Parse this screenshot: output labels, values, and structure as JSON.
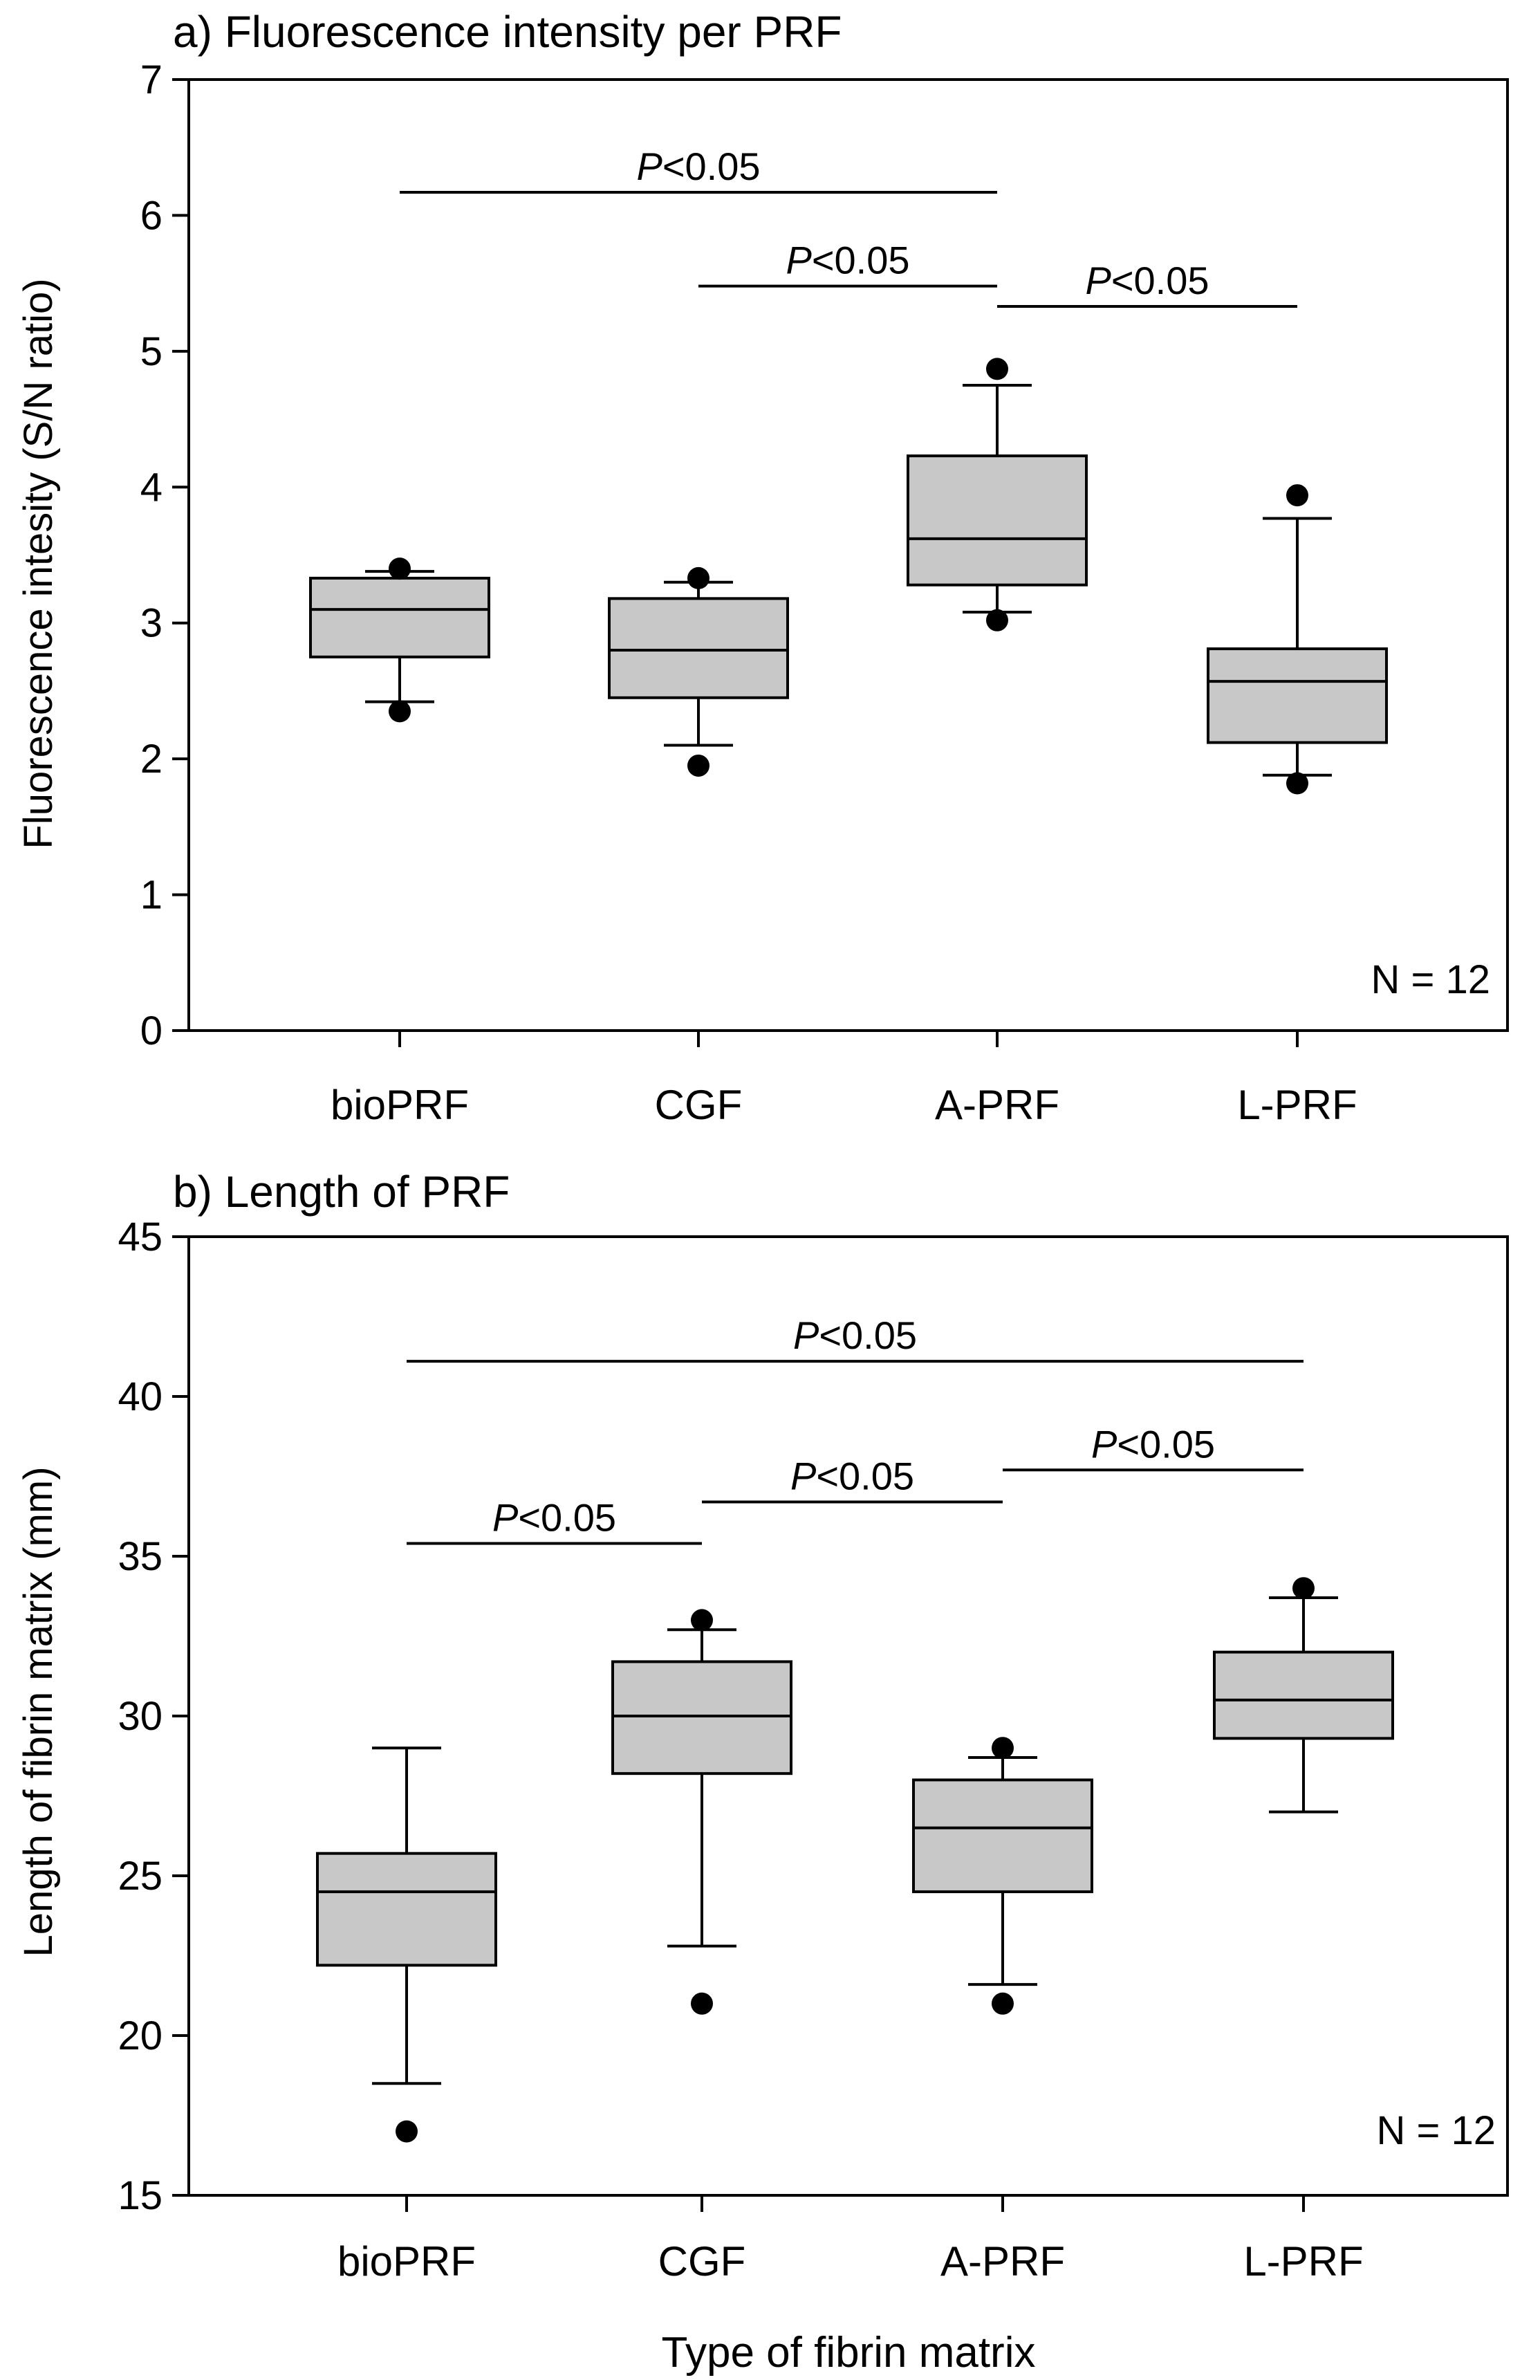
{
  "chart_data": [
    {
      "type": "box",
      "title": "a) Fluorescence intensity per PRF",
      "ylabel": "Fluorescence intesity (S/N ratio)",
      "xlabel": "",
      "ylim": [
        0,
        7
      ],
      "yticks": [
        0,
        1,
        2,
        3,
        4,
        5,
        6,
        7
      ],
      "categories": [
        "bioPRF",
        "CGF",
        "A-PRF",
        "L-PRF"
      ],
      "boxes": [
        {
          "category": "bioPRF",
          "whisker_low": 2.42,
          "q1": 2.75,
          "median": 3.1,
          "q3": 3.33,
          "whisker_high": 3.38,
          "outliers": [
            2.35,
            3.4
          ]
        },
        {
          "category": "CGF",
          "whisker_low": 2.1,
          "q1": 2.45,
          "median": 2.8,
          "q3": 3.18,
          "whisker_high": 3.3,
          "outliers": [
            1.95,
            3.33
          ]
        },
        {
          "category": "A-PRF",
          "whisker_low": 3.08,
          "q1": 3.28,
          "median": 3.62,
          "q3": 4.23,
          "whisker_high": 4.75,
          "outliers": [
            3.02,
            4.87
          ]
        },
        {
          "category": "L-PRF",
          "whisker_low": 1.88,
          "q1": 2.12,
          "median": 2.57,
          "q3": 2.81,
          "whisker_high": 3.77,
          "outliers": [
            1.82,
            3.94
          ]
        }
      ],
      "significance": [
        {
          "from": "bioPRF",
          "to": "A-PRF",
          "y": 6.17,
          "label_italic": "P",
          "label_rest": "<0.05"
        },
        {
          "from": "CGF",
          "to": "A-PRF",
          "y": 5.48,
          "label_italic": "P",
          "label_rest": "<0.05"
        },
        {
          "from": "A-PRF",
          "to": "L-PRF",
          "y": 5.33,
          "label_italic": "P",
          "label_rest": "<0.05"
        }
      ],
      "annotation": "N = 12"
    },
    {
      "type": "box",
      "title": "b) Length of PRF",
      "ylabel": "Length of fibrin matrix (mm)",
      "xlabel": "Type of fibrin matrix",
      "ylim": [
        15,
        45
      ],
      "yticks": [
        15,
        20,
        25,
        30,
        35,
        40,
        45
      ],
      "categories": [
        "bioPRF",
        "CGF",
        "A-PRF",
        "L-PRF"
      ],
      "boxes": [
        {
          "category": "bioPRF",
          "whisker_low": 18.5,
          "q1": 22.2,
          "median": 24.5,
          "q3": 25.7,
          "whisker_high": 29.0,
          "outliers": [
            17.0
          ]
        },
        {
          "category": "CGF",
          "whisker_low": 22.8,
          "q1": 28.2,
          "median": 30.0,
          "q3": 31.7,
          "whisker_high": 32.7,
          "outliers": [
            21.0,
            33.0
          ]
        },
        {
          "category": "A-PRF",
          "whisker_low": 21.6,
          "q1": 24.5,
          "median": 26.5,
          "q3": 28.0,
          "whisker_high": 28.7,
          "outliers": [
            21.0,
            29.0
          ]
        },
        {
          "category": "L-PRF",
          "whisker_low": 27.0,
          "q1": 29.3,
          "median": 30.5,
          "q3": 32.0,
          "whisker_high": 33.7,
          "outliers": [
            34.0
          ]
        }
      ],
      "significance": [
        {
          "from": "bioPRF",
          "to": "L-PRF",
          "y": 41.1,
          "label_italic": "P",
          "label_rest": "<0.05"
        },
        {
          "from": "bioPRF",
          "to": "CGF",
          "y": 35.4,
          "label_italic": "P",
          "label_rest": "<0.05"
        },
        {
          "from": "CGF",
          "to": "A-PRF",
          "y": 36.7,
          "label_italic": "P",
          "label_rest": "<0.05"
        },
        {
          "from": "A-PRF",
          "to": "L-PRF",
          "y": 37.7,
          "label_italic": "P",
          "label_rest": "<0.05"
        }
      ],
      "annotation": "N = 12"
    }
  ]
}
